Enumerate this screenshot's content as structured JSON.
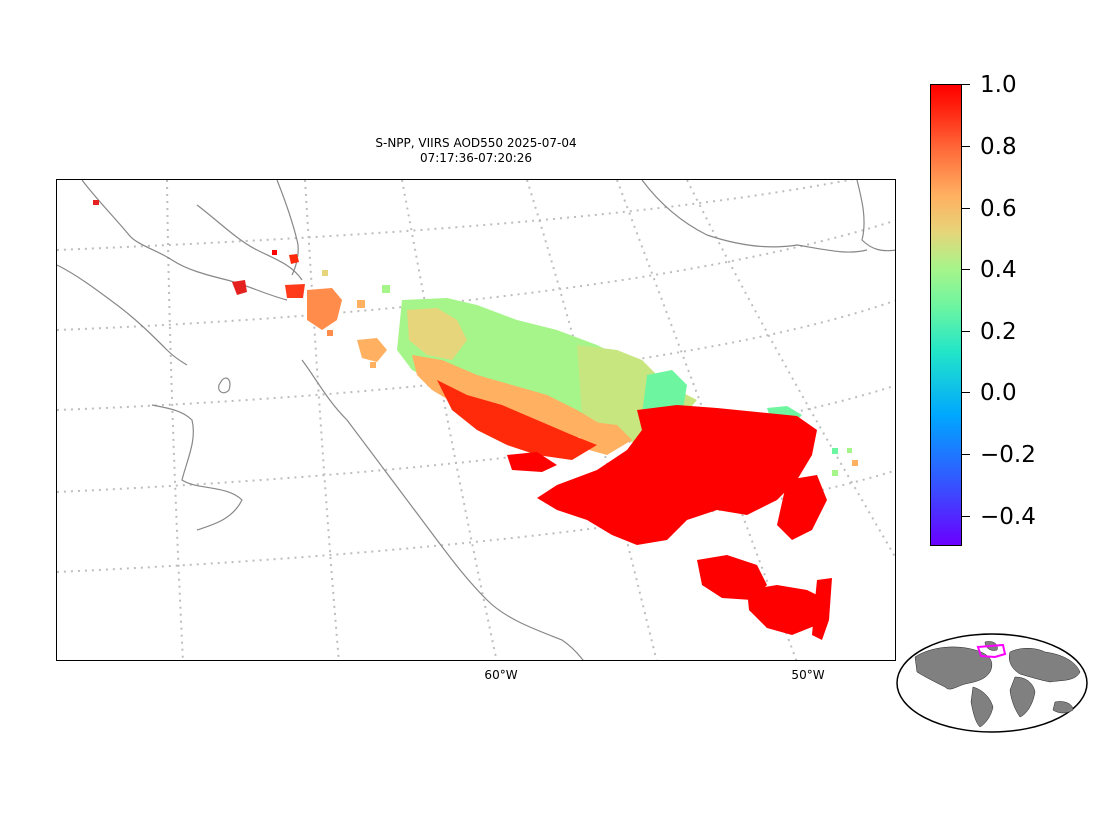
{
  "title": {
    "line1": "S-NPP, VIIRS AOD550 2025-07-04",
    "line2": "07:17:36-07:20:26"
  },
  "map": {
    "projection": "lambert-conformal",
    "gridlines": "dotted gray",
    "coastline_color": "#888888",
    "lon_labels": [
      "60°W",
      "50°W"
    ]
  },
  "colorbar": {
    "variable": "AOD550",
    "min": -0.5,
    "max": 1.0,
    "colormap": "rainbow",
    "tick_labels": [
      "1.0",
      "0.8",
      "0.6",
      "0.4",
      "0.2",
      "0.0",
      "−0.2",
      "−0.4"
    ]
  },
  "inset": {
    "type": "world-overview",
    "land_color": "#808080",
    "highlight_color": "#ff00ff"
  },
  "colors": {
    "aod_high": "#ff0000",
    "aod_mid": "#ffb060",
    "aod_low": "#a6f58a",
    "aod_teal": "#6ef5a0"
  }
}
